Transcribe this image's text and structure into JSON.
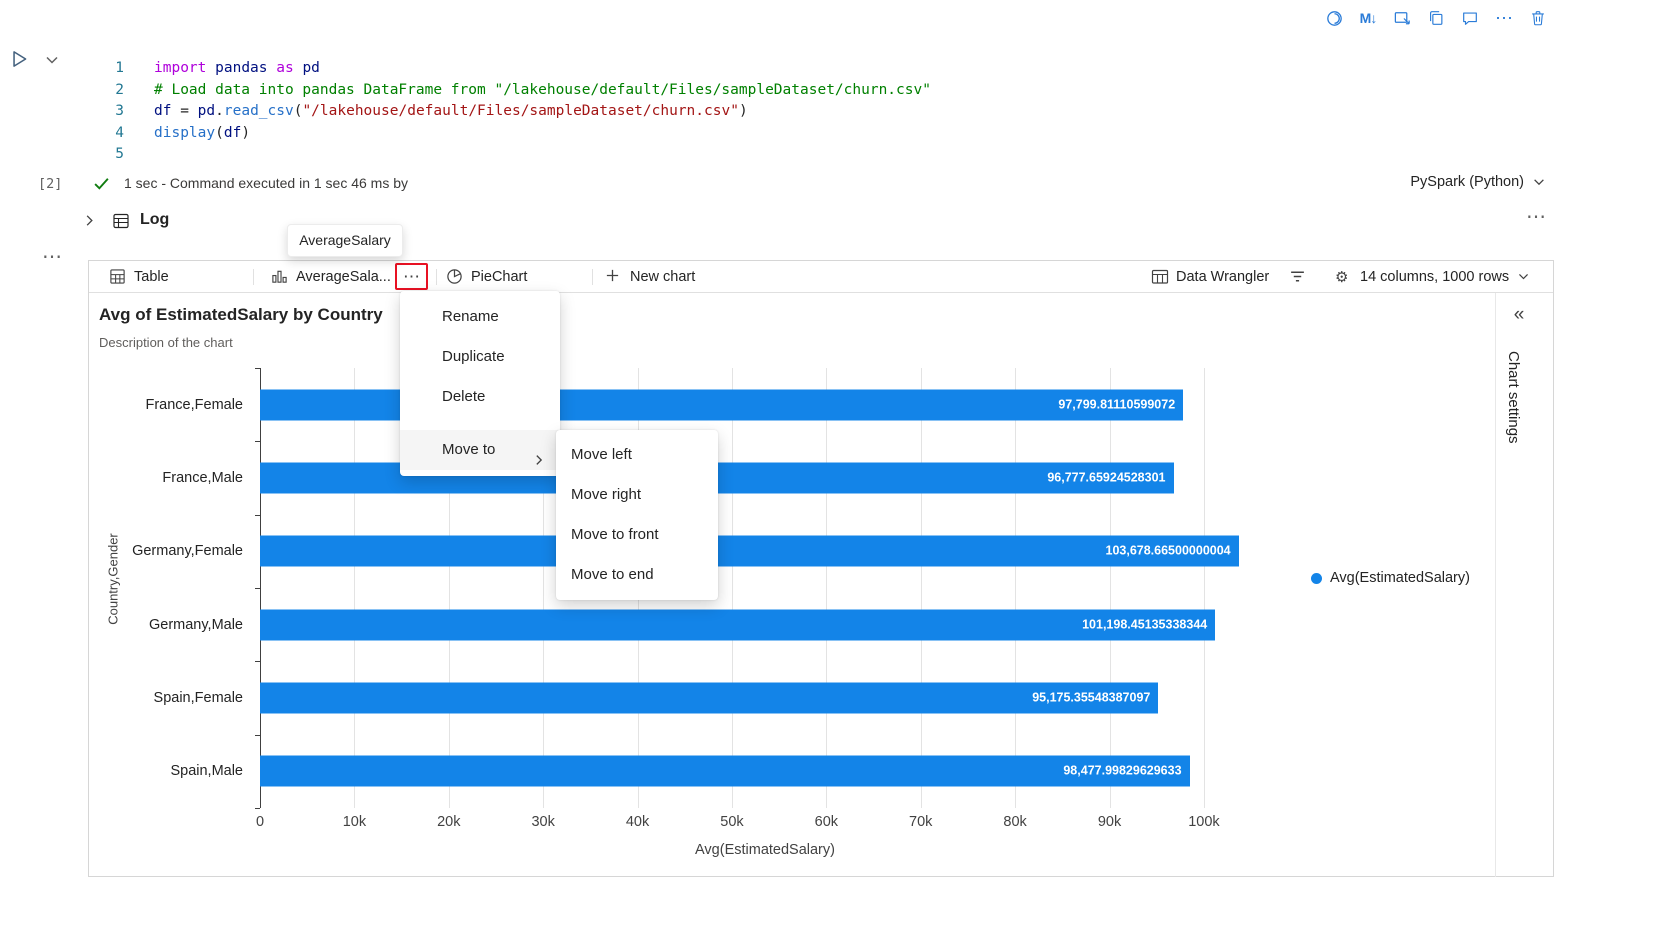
{
  "glyphs": {
    "more": "⋯",
    "markdown_down": "M↓",
    "collapse": "«",
    "gear": "⚙"
  },
  "colors": {
    "icon_blue": "#2B7CD8",
    "highlight_red": "#E81123",
    "bar_blue": "#1384E8"
  },
  "cell_toolbar": {
    "icons": [
      "copilot-icon",
      "markdown-down-icon",
      "select-rectangle-icon",
      "copy-icon",
      "comment-icon",
      "more-options-icon",
      "delete-icon"
    ]
  },
  "code_cell": {
    "execution_count": "[2]",
    "status_text": "1 sec - Command executed in 1 sec 46 ms by",
    "kernel": "PySpark (Python)",
    "lines": [
      {
        "num": "1",
        "tokens": [
          {
            "c": "kw",
            "t": "import"
          },
          {
            "c": "pl",
            "t": " "
          },
          {
            "c": "id",
            "t": "pandas"
          },
          {
            "c": "pl",
            "t": " "
          },
          {
            "c": "kw",
            "t": "as"
          },
          {
            "c": "pl",
            "t": " "
          },
          {
            "c": "id",
            "t": "pd"
          }
        ]
      },
      {
        "num": "2",
        "tokens": [
          {
            "c": "cm",
            "t": "# Load data into pandas DataFrame from \"/lakehouse/default/Files/sampleDataset/churn.csv\""
          }
        ]
      },
      {
        "num": "3",
        "tokens": [
          {
            "c": "id",
            "t": "df"
          },
          {
            "c": "pl",
            "t": " = "
          },
          {
            "c": "id",
            "t": "pd"
          },
          {
            "c": "pl",
            "t": "."
          },
          {
            "c": "fn",
            "t": "read_csv"
          },
          {
            "c": "pl",
            "t": "("
          },
          {
            "c": "str",
            "t": "\"/lakehouse/default/Files/sampleDataset/churn.csv\""
          },
          {
            "c": "pl",
            "t": ")"
          }
        ]
      },
      {
        "num": "4",
        "tokens": [
          {
            "c": "fn",
            "t": "display"
          },
          {
            "c": "pl",
            "t": "("
          },
          {
            "c": "id",
            "t": "df"
          },
          {
            "c": "pl",
            "t": ")"
          }
        ]
      },
      {
        "num": "5",
        "tokens": []
      }
    ]
  },
  "log_section": {
    "label": "Log"
  },
  "tooltip": {
    "text": "AverageSalary"
  },
  "tabs": {
    "table": "Table",
    "chart": "AverageSala...",
    "pie": "PieChart",
    "new_chart": "New chart",
    "data_wrangler": "Data Wrangler",
    "columns_info": "14 columns, 1000 rows"
  },
  "context_menu": {
    "items": [
      "Rename",
      "Duplicate",
      "Delete"
    ],
    "move_to": "Move to",
    "submenu": [
      "Move left",
      "Move right",
      "Move to front",
      "Move to end"
    ]
  },
  "chart_settings_panel": {
    "label": "Chart settings"
  },
  "chart_data": {
    "type": "bar",
    "orientation": "horizontal",
    "title": "Avg of EstimatedSalary by Country",
    "subtitle": "Description of the chart",
    "categories": [
      "France,Female",
      "France,Male",
      "Germany,Female",
      "Germany,Male",
      "Spain,Female",
      "Spain,Male"
    ],
    "values": [
      97799.81110599072,
      96777.65924528301,
      103678.66500000004,
      101198.45135338344,
      95175.35548387097,
      98477.99829629633
    ],
    "value_labels": [
      "97,799.81110599072",
      "96,777.65924528301",
      "103,678.66500000004",
      "101,198.45135338344",
      "95,175.35548387097",
      "98,477.99829629633"
    ],
    "xlabel": "Avg(EstimatedSalary)",
    "ylabel": "Country,Gender",
    "x_ticks": [
      "0",
      "10k",
      "20k",
      "30k",
      "40k",
      "50k",
      "60k",
      "70k",
      "80k",
      "90k",
      "100k"
    ],
    "x_tick_values": [
      0,
      10000,
      20000,
      30000,
      40000,
      50000,
      60000,
      70000,
      80000,
      90000,
      100000
    ],
    "axis_range": [
      0,
      107000
    ],
    "bar_color": "#1384E8",
    "grid": true,
    "legend_position": "right",
    "legend": [
      {
        "label": "Avg(EstimatedSalary)",
        "color": "#1384E8"
      }
    ]
  }
}
